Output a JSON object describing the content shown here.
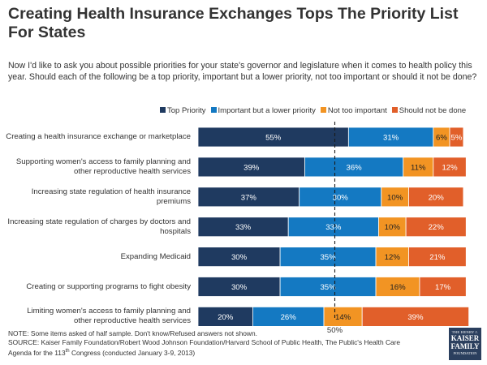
{
  "title": "Creating Health Insurance Exchanges Tops The Priority List For States",
  "subtitle": "Now I'd like to ask you about possible priorities for your state's governor and legislature when it comes to health policy this year. Should each of the following be a top priority, important but a lower priority, not too important or should it not be done?",
  "note_line1": "NOTE: Some items asked of half sample. Don't know/Refused answers  not shown.",
  "note_line2": "SOURCE: Kaiser Family Foundation/Robert Wood Johnson Foundation/Harvard School of Public Health, The Public's Health Care",
  "note_line3_pre": "Agenda for the 113",
  "note_line3_sup": "th",
  "note_line3_post": " Congress (conducted January 3-9, 2013)",
  "logo": {
    "line1": "THE HENRY J.",
    "line2": "KAISER",
    "line3": "FAMILY",
    "line4": "FOUNDATION"
  },
  "chart_data": {
    "type": "bar",
    "orientation": "horizontal-stacked",
    "unit": "%",
    "categories": [
      "Creating a health insurance exchange or marketplace",
      "Supporting women's access to family planning and other reproductive health services",
      "Increasing state regulation of health insurance premiums",
      "Increasing state regulation of charges by doctors and hospitals",
      "Expanding Medicaid",
      "Creating or supporting programs to fight obesity",
      "Limiting women's access to family planning and other reproductive health services"
    ],
    "category_lines": [
      [
        "Creating a health insurance exchange or marketplace"
      ],
      [
        "Supporting women's access to family planning and",
        "other reproductive health services"
      ],
      [
        "Increasing state regulation of health insurance",
        "premiums"
      ],
      [
        "Increasing state regulation of charges by doctors and",
        "hospitals"
      ],
      [
        "Expanding Medicaid"
      ],
      [
        "Creating or supporting programs to fight obesity"
      ],
      [
        "Limiting women's access to family planning and",
        "other reproductive health services"
      ]
    ],
    "series": [
      {
        "name": "Top Priority",
        "color": "#1f3a60",
        "values": [
          55,
          39,
          37,
          33,
          30,
          30,
          20
        ]
      },
      {
        "name": "Important but a lower priority",
        "color": "#1479c2",
        "values": [
          31,
          36,
          30,
          33,
          35,
          35,
          26
        ]
      },
      {
        "name": "Not too important",
        "color": "#f29423",
        "values": [
          6,
          11,
          10,
          10,
          12,
          16,
          14
        ]
      },
      {
        "name": "Should not be done",
        "color": "#e15f2a",
        "values": [
          5,
          12,
          20,
          22,
          21,
          17,
          39
        ]
      }
    ],
    "reference_line": {
      "value": 50,
      "label": "50%"
    },
    "xlim": [
      0,
      100
    ]
  }
}
